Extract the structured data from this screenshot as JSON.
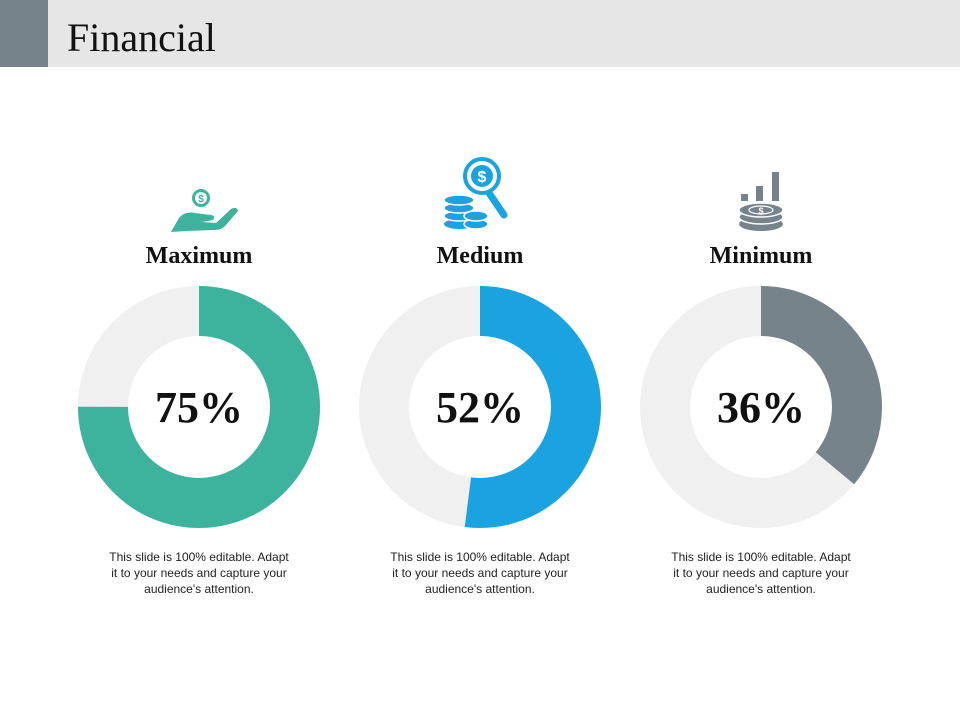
{
  "header": {
    "title": "Financial",
    "accent_color": "#77838b"
  },
  "chart_data": {
    "type": "pie",
    "variant": "donut",
    "track_color": "#f0f0f0",
    "items": [
      {
        "label": "Maximum",
        "value": 75,
        "display": "75%",
        "color": "#3db39e",
        "icon": "hand-coin-icon",
        "description": "This slide is 100% editable. Adapt it to your needs and capture your audience's attention."
      },
      {
        "label": "Medium",
        "value": 52,
        "display": "52%",
        "color": "#1aa3e0",
        "icon": "coins-magnifier-icon",
        "description": "This slide is 100% editable. Adapt it to your needs and capture your audience's attention."
      },
      {
        "label": "Minimum",
        "value": 36,
        "display": "36%",
        "color": "#77838b",
        "icon": "bar-growth-coins-icon",
        "description": "This slide is 100% editable. Adapt it to your needs and capture your audience's attention."
      }
    ]
  }
}
